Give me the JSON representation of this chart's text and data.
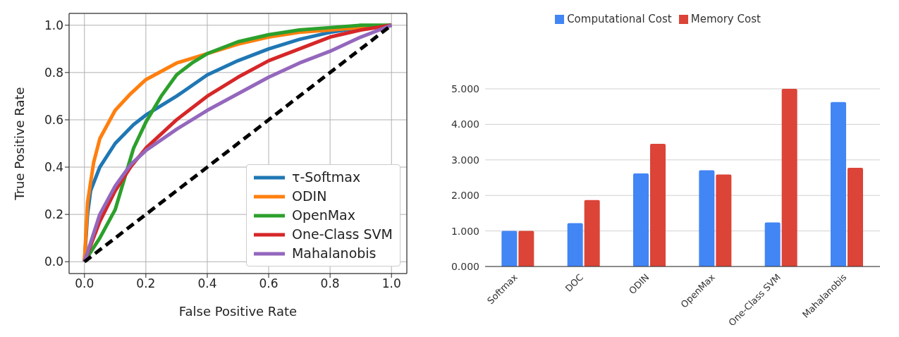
{
  "chart_data": [
    {
      "type": "line",
      "xlabel": "False Positive Rate",
      "ylabel": "True Positive Rate",
      "xlim": [
        -0.05,
        1.05
      ],
      "ylim": [
        -0.05,
        1.05
      ],
      "xticks": [
        {
          "value": 0,
          "label": "0.0"
        },
        {
          "value": 0.2,
          "label": "0.2"
        },
        {
          "value": 0.4,
          "label": "0.4"
        },
        {
          "value": 0.6,
          "label": "0.6"
        },
        {
          "value": 0.8,
          "label": "0.8"
        },
        {
          "value": 1,
          "label": "1.0"
        }
      ],
      "yticks": [
        {
          "value": 0,
          "label": "0.0"
        },
        {
          "value": 0.2,
          "label": "0.2"
        },
        {
          "value": 0.4,
          "label": "0.4"
        },
        {
          "value": 0.6,
          "label": "0.6"
        },
        {
          "value": 0.8,
          "label": "0.8"
        },
        {
          "value": 1,
          "label": "1.0"
        }
      ],
      "grid": true,
      "legend": "bottom right",
      "marker": "none",
      "series": [
        {
          "name": "τ-Softmax",
          "color": "#1f77b4",
          "x": [
            0,
            0.01,
            0.02,
            0.05,
            0.1,
            0.16,
            0.2,
            0.3,
            0.4,
            0.5,
            0.6,
            0.7,
            0.8,
            0.9,
            1
          ],
          "values": [
            0,
            0.2,
            0.3,
            0.4,
            0.5,
            0.58,
            0.62,
            0.7,
            0.79,
            0.85,
            0.9,
            0.94,
            0.97,
            0.99,
            1
          ]
        },
        {
          "name": "ODIN",
          "color": "#ff7f0e",
          "x": [
            0,
            0.01,
            0.03,
            0.05,
            0.1,
            0.15,
            0.2,
            0.3,
            0.4,
            0.5,
            0.6,
            0.7,
            0.8,
            0.9,
            1
          ],
          "values": [
            0,
            0.25,
            0.42,
            0.52,
            0.64,
            0.71,
            0.77,
            0.84,
            0.88,
            0.92,
            0.95,
            0.97,
            0.98,
            0.99,
            1
          ]
        },
        {
          "name": "OpenMax",
          "color": "#2ca02c",
          "x": [
            0,
            0.05,
            0.1,
            0.13,
            0.16,
            0.2,
            0.25,
            0.3,
            0.35,
            0.4,
            0.5,
            0.6,
            0.7,
            0.8,
            0.9,
            1
          ],
          "values": [
            0,
            0.1,
            0.22,
            0.35,
            0.48,
            0.59,
            0.7,
            0.79,
            0.84,
            0.88,
            0.93,
            0.96,
            0.98,
            0.99,
            1,
            1
          ]
        },
        {
          "name": "One-Class SVM",
          "color": "#d62728",
          "x": [
            0,
            0.05,
            0.1,
            0.15,
            0.2,
            0.3,
            0.4,
            0.5,
            0.6,
            0.7,
            0.8,
            0.9,
            1
          ],
          "values": [
            0,
            0.17,
            0.3,
            0.4,
            0.48,
            0.6,
            0.7,
            0.78,
            0.85,
            0.9,
            0.95,
            0.98,
            1
          ]
        },
        {
          "name": "Mahalanobis",
          "color": "#9467bd",
          "x": [
            0,
            0.05,
            0.1,
            0.15,
            0.2,
            0.3,
            0.4,
            0.5,
            0.6,
            0.7,
            0.8,
            0.9,
            1
          ],
          "values": [
            0,
            0.2,
            0.32,
            0.41,
            0.47,
            0.56,
            0.64,
            0.71,
            0.78,
            0.84,
            0.89,
            0.95,
            1
          ]
        },
        {
          "color": "#000000",
          "line_style": "dashed",
          "x": [
            0,
            1
          ],
          "values": [
            0,
            1
          ]
        }
      ]
    },
    {
      "type": "bar",
      "categories": [
        "Softmax",
        "DOC",
        "ODIN",
        "OpenMax",
        "One-Class SVM",
        "Mahalanobis"
      ],
      "ylim": [
        0,
        5
      ],
      "yticks": [
        {
          "value": 0,
          "label": "0.000"
        },
        {
          "value": 1,
          "label": "1.000"
        },
        {
          "value": 2,
          "label": "2.000"
        },
        {
          "value": 3,
          "label": "3.000"
        },
        {
          "value": 4,
          "label": "4.000"
        },
        {
          "value": 5,
          "label": "5.000"
        }
      ],
      "grid": "y",
      "legend": "top",
      "series": [
        {
          "name": "Computational Cost",
          "color": "#4285f4",
          "values": [
            1.0,
            1.22,
            2.62,
            2.71,
            1.24,
            4.63
          ]
        },
        {
          "name": "Memory Cost",
          "color": "#db4437",
          "values": [
            1.0,
            1.87,
            3.45,
            2.59,
            5.0,
            2.78
          ]
        }
      ]
    }
  ]
}
